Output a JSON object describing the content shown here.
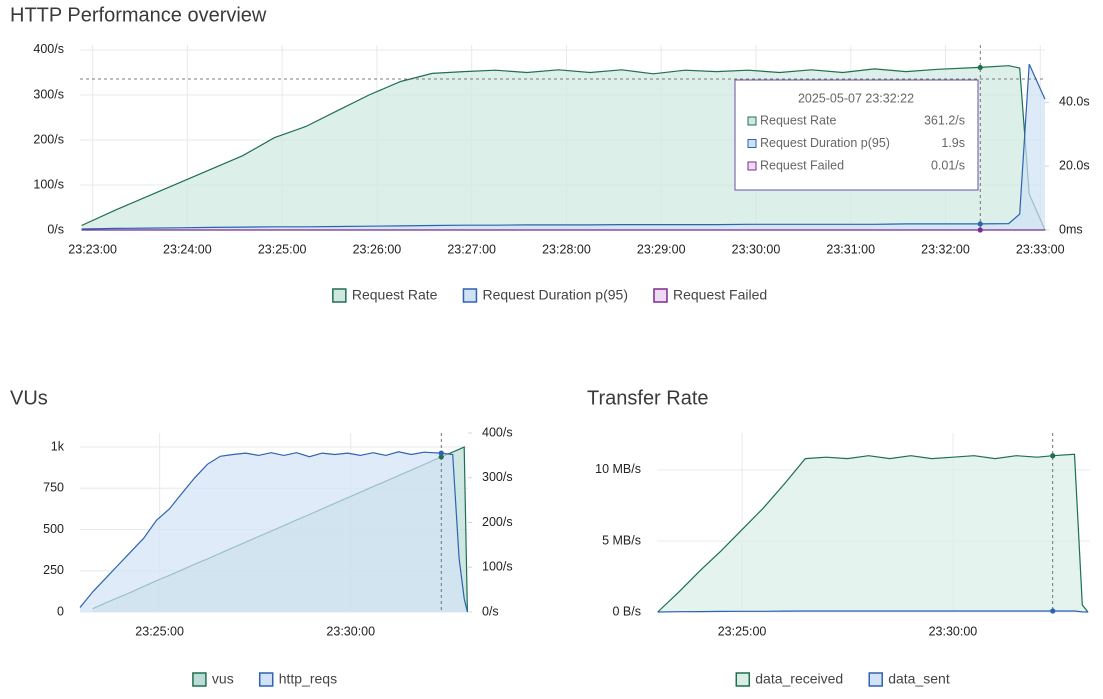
{
  "chart_data": [
    {
      "type": "area",
      "title": "HTTP Performance overview",
      "x": [
        "23:22:53",
        "23:23:15",
        "23:23:35",
        "23:23:55",
        "23:24:15",
        "23:24:35",
        "23:24:55",
        "23:25:15",
        "23:25:35",
        "23:25:55",
        "23:26:15",
        "23:26:35",
        "23:26:55",
        "23:27:15",
        "23:27:35",
        "23:27:55",
        "23:28:15",
        "23:28:35",
        "23:28:55",
        "23:29:15",
        "23:29:35",
        "23:29:55",
        "23:30:15",
        "23:30:35",
        "23:30:55",
        "23:31:15",
        "23:31:35",
        "23:31:55",
        "23:32:22",
        "23:32:40",
        "23:32:47",
        "23:32:53",
        "23:33:03"
      ],
      "xlim": [
        "23:22:52",
        "23:33:03"
      ],
      "xticks": [
        "23:23:00",
        "23:24:00",
        "23:25:00",
        "23:26:00",
        "23:27:00",
        "23:28:00",
        "23:29:00",
        "23:30:00",
        "23:31:00",
        "23:32:00",
        "23:33:00"
      ],
      "ylim": [
        0,
        411
      ],
      "yticks": [
        {
          "value": 0,
          "label": "0/s"
        },
        {
          "value": 100,
          "label": "100/s"
        },
        {
          "value": 200,
          "label": "200/s"
        },
        {
          "value": 300,
          "label": "300/s"
        },
        {
          "value": 400,
          "label": "400/s"
        }
      ],
      "y2lim": [
        0,
        58
      ],
      "y2ticks": [
        {
          "value": 0,
          "label": "0ms"
        },
        {
          "value": 20,
          "label": "20.0s"
        },
        {
          "value": 40,
          "label": "40.0s"
        }
      ],
      "grid": true,
      "series": [
        {
          "name": "Request Rate",
          "color": "#1f6f50",
          "fill": "#cfe8df",
          "values": [
            10,
            45,
            75,
            105,
            135,
            165,
            205,
            230,
            265,
            300,
            330,
            348,
            352,
            355,
            350,
            356,
            350,
            356,
            347,
            355,
            352,
            355,
            350,
            356,
            350,
            358,
            352,
            357,
            361.2,
            365,
            360,
            80,
            0
          ]
        },
        {
          "name": "Request Duration p(95)",
          "color": "#2d63b0",
          "fill": "#cfe2f5",
          "axis": "y2",
          "values": [
            0.3,
            0.5,
            0.6,
            0.7,
            0.8,
            0.9,
            1,
            1,
            1.1,
            1.2,
            1.3,
            1.4,
            1.5,
            1.5,
            1.6,
            1.6,
            1.6,
            1.7,
            1.7,
            1.7,
            1.7,
            1.8,
            1.8,
            1.8,
            1.8,
            1.8,
            1.9,
            1.9,
            1.9,
            2,
            5,
            52,
            41
          ]
        },
        {
          "name": "Request Failed",
          "color": "#7d2a8f",
          "fill": "#efdaf3",
          "values": [
            0,
            0,
            0,
            0,
            0,
            0,
            0,
            0,
            0,
            0,
            0,
            0,
            0,
            0,
            0,
            0,
            0,
            0,
            0,
            0,
            0,
            0,
            0,
            0,
            0,
            0,
            0,
            0,
            0.01,
            0,
            0,
            0,
            0
          ]
        }
      ],
      "tooltip": {
        "title": "2025-05-07 23:32:22",
        "values": [
          "361.2/s",
          "1.9s",
          "0.01/s"
        ]
      }
    },
    {
      "type": "area",
      "title": "VUs",
      "x": [
        "23:22:55",
        "23:23:15",
        "23:23:35",
        "23:23:55",
        "23:24:15",
        "23:24:35",
        "23:24:55",
        "23:25:15",
        "23:25:35",
        "23:25:55",
        "23:26:15",
        "23:26:35",
        "23:26:55",
        "23:27:15",
        "23:27:35",
        "23:27:55",
        "23:28:15",
        "23:28:35",
        "23:28:55",
        "23:29:15",
        "23:29:35",
        "23:29:55",
        "23:30:15",
        "23:30:35",
        "23:30:55",
        "23:31:15",
        "23:31:35",
        "23:31:55",
        "23:32:22",
        "23:32:40",
        "23:32:50",
        "23:32:58",
        "23:33:03"
      ],
      "xlim": [
        "23:22:55",
        "23:33:04"
      ],
      "xticks": [
        "23:25:00",
        "23:30:00"
      ],
      "ylim": [
        0,
        1085
      ],
      "yticks": [
        0,
        250,
        500,
        750,
        {
          "value": 1000,
          "label": "1k"
        }
      ],
      "y2lim": [
        0,
        400
      ],
      "y2ticks": [
        {
          "value": 0,
          "label": "0/s"
        },
        {
          "value": 100,
          "label": "100/s"
        },
        {
          "value": 200,
          "label": "200/s"
        },
        {
          "value": 300,
          "label": "300/s"
        },
        {
          "value": 400,
          "label": "400/s"
        }
      ],
      "grid": true,
      "series": [
        {
          "name": "vus",
          "color": "#1f6f50",
          "fill": "#b9ddd6",
          "values": [
            null,
            20,
            55,
            87,
            120,
            155,
            190,
            222,
            255,
            290,
            322,
            356,
            390,
            423,
            457,
            490,
            524,
            558,
            591,
            625,
            659,
            692,
            726,
            760,
            793,
            827,
            860,
            894,
            940,
            970,
            986,
            1000,
            0
          ]
        },
        {
          "name": "http_reqs",
          "color": "#2d63b0",
          "fill": "#d3e2f6",
          "axis": "y2",
          "values": [
            10,
            45,
            75,
            105,
            135,
            165,
            205,
            230,
            265,
            300,
            330,
            348,
            352,
            355,
            350,
            356,
            350,
            356,
            347,
            355,
            352,
            355,
            350,
            356,
            350,
            358,
            352,
            357,
            355,
            352,
            120,
            30,
            0
          ]
        }
      ]
    },
    {
      "type": "area",
      "title": "Transfer Rate",
      "x": [
        "23:23:00",
        "23:23:30",
        "23:24:00",
        "23:24:30",
        "23:25:00",
        "23:25:30",
        "23:26:00",
        "23:26:30",
        "23:27:00",
        "23:27:30",
        "23:28:00",
        "23:28:30",
        "23:29:00",
        "23:29:30",
        "23:30:00",
        "23:30:30",
        "23:31:00",
        "23:31:30",
        "23:32:00",
        "23:32:22",
        "23:32:53",
        "23:33:04",
        "23:33:12"
      ],
      "xlim": [
        "23:22:59",
        "23:33:15"
      ],
      "xticks": [
        "23:25:00",
        "23:30:00"
      ],
      "ylim": [
        0,
        12.6
      ],
      "yticks": [
        {
          "value": 0,
          "label": "0 B/s"
        },
        {
          "value": 5,
          "label": "5 MB/s"
        },
        {
          "value": 10,
          "label": "10 MB/s"
        }
      ],
      "grid": true,
      "series": [
        {
          "name": "data_received",
          "color": "#1f6f50",
          "fill": "#d9eee7",
          "values": [
            0,
            1.4,
            2.9,
            4.3,
            5.8,
            7.3,
            9,
            10.8,
            10.9,
            10.8,
            11,
            10.8,
            11,
            10.8,
            10.9,
            11,
            10.8,
            11,
            10.9,
            11,
            11.1,
            0.5,
            0
          ]
        },
        {
          "name": "data_sent",
          "color": "#2d63b0",
          "fill": "#d3e2f6",
          "values": [
            0,
            0.02,
            0.03,
            0.04,
            0.05,
            0.05,
            0.06,
            0.07,
            0.07,
            0.07,
            0.07,
            0.07,
            0.07,
            0.07,
            0.07,
            0.07,
            0.07,
            0.07,
            0.07,
            0.07,
            0.07,
            0.01,
            0
          ]
        }
      ]
    }
  ]
}
